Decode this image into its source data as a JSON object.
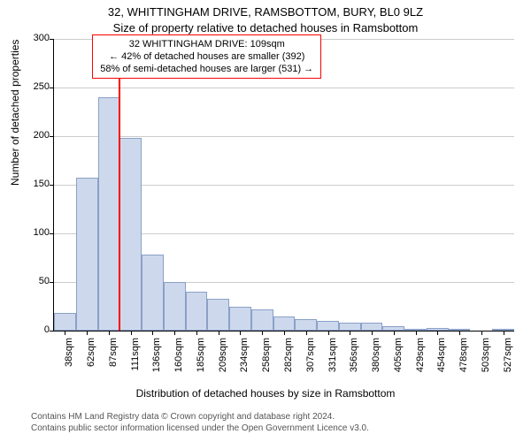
{
  "title_main": "32, WHITTINGHAM DRIVE, RAMSBOTTOM, BURY, BL0 9LZ",
  "title_sub": "Size of property relative to detached houses in Ramsbottom",
  "ylabel": "Number of detached properties",
  "xlabel": "Distribution of detached houses by size in Ramsbottom",
  "chart": {
    "type": "histogram",
    "ylim": [
      0,
      300
    ],
    "yticks": [
      0,
      50,
      100,
      150,
      200,
      250,
      300
    ],
    "xlabels": [
      "38sqm",
      "62sqm",
      "87sqm",
      "111sqm",
      "136sqm",
      "160sqm",
      "185sqm",
      "209sqm",
      "234sqm",
      "258sqm",
      "282sqm",
      "307sqm",
      "331sqm",
      "356sqm",
      "380sqm",
      "405sqm",
      "429sqm",
      "454sqm",
      "478sqm",
      "503sqm",
      "527sqm"
    ],
    "values": [
      18,
      157,
      240,
      198,
      78,
      50,
      40,
      33,
      25,
      22,
      15,
      12,
      10,
      8,
      8,
      5,
      2,
      3,
      2,
      0,
      2
    ],
    "bar_fill": "#cdd8ec",
    "bar_stroke": "#8aa0c8",
    "grid_color": "#cccccc",
    "background_color": "#ffffff",
    "marker_color": "#ff0000",
    "marker_at_category_index": 3,
    "marker_height_value": 265
  },
  "info_box": {
    "line1": "32 WHITTINGHAM DRIVE: 109sqm",
    "line2": "← 42% of detached houses are smaller (392)",
    "line3": "58% of semi-detached houses are larger (531) →",
    "border_color": "#ff0000"
  },
  "attribution": {
    "line1": "Contains HM Land Registry data © Crown copyright and database right 2024.",
    "line2": "Contains public sector information licensed under the Open Government Licence v3.0."
  },
  "fonts": {
    "title_fontsize": 13,
    "label_fontsize": 12,
    "tick_fontsize": 11,
    "info_fontsize": 11,
    "attribution_fontsize": 10
  }
}
